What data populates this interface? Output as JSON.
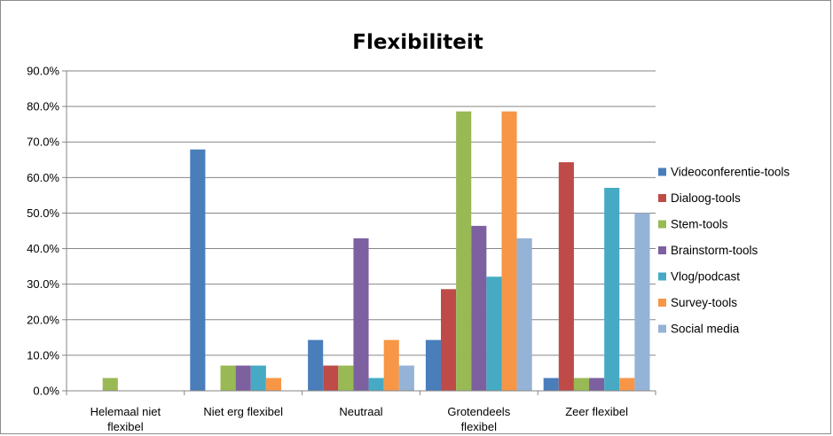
{
  "chart_data": {
    "type": "bar",
    "title": "Flexibiliteit",
    "xlabel": "",
    "ylabel": "",
    "ylim": [
      0,
      90
    ],
    "y_ticks": [
      "0.0%",
      "10.0%",
      "20.0%",
      "30.0%",
      "40.0%",
      "50.0%",
      "60.0%",
      "70.0%",
      "80.0%",
      "90.0%"
    ],
    "categories": [
      [
        "Helemaal niet",
        "flexibel"
      ],
      [
        "Niet erg flexibel"
      ],
      [
        "Neutraal"
      ],
      [
        "Grotendeels",
        "flexibel"
      ],
      [
        "Zeer flexibel"
      ]
    ],
    "legend_position": "right",
    "grid": true,
    "series": [
      {
        "name": "Videoconferentie-tools",
        "color": "#4a7ebb",
        "values": [
          0,
          67.9,
          14.3,
          14.3,
          3.6
        ]
      },
      {
        "name": "Dialoog-tools",
        "color": "#be4b48",
        "values": [
          0,
          0,
          7.1,
          28.6,
          64.3
        ]
      },
      {
        "name": "Stem-tools",
        "color": "#98b954",
        "values": [
          3.6,
          7.1,
          7.1,
          78.6,
          3.6
        ]
      },
      {
        "name": "Brainstorm-tools",
        "color": "#7d60a0",
        "values": [
          0,
          7.1,
          42.9,
          46.4,
          3.6
        ]
      },
      {
        "name": "Vlog/podcast",
        "color": "#46aac4",
        "values": [
          0,
          7.1,
          3.6,
          32.1,
          57.1
        ]
      },
      {
        "name": "Survey-tools",
        "color": "#f79646",
        "values": [
          0,
          3.6,
          14.3,
          78.6,
          3.6
        ]
      },
      {
        "name": "Social media",
        "color": "#94b3d6",
        "values": [
          0,
          0,
          7.1,
          42.9,
          50.0
        ]
      }
    ]
  }
}
